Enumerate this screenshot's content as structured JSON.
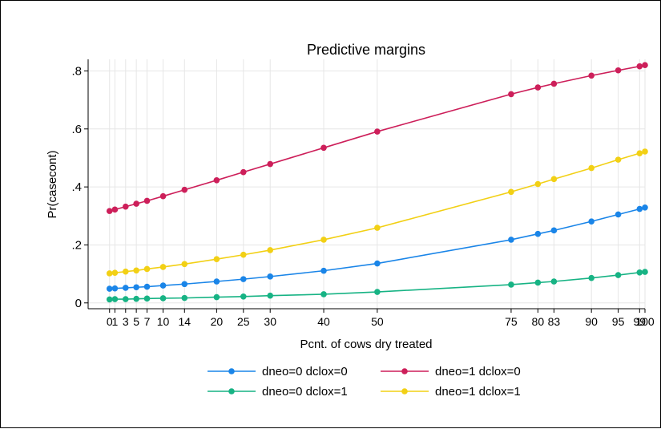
{
  "chart_data": {
    "type": "line",
    "title": "Predictive margins",
    "xlabel": "Pcnt. of cows dry treated",
    "ylabel": "Pr(casecont)",
    "x": [
      0,
      1,
      3,
      5,
      7,
      10,
      14,
      20,
      25,
      30,
      40,
      50,
      75,
      80,
      83,
      90,
      95,
      99,
      100
    ],
    "x_ticks": [
      {
        "value": 0,
        "label": "0"
      },
      {
        "value": 1,
        "label": "1"
      },
      {
        "value": 3,
        "label": "3"
      },
      {
        "value": 5,
        "label": "5"
      },
      {
        "value": 7,
        "label": "7"
      },
      {
        "value": 10,
        "label": "10"
      },
      {
        "value": 14,
        "label": "14"
      },
      {
        "value": 20,
        "label": "20"
      },
      {
        "value": 25,
        "label": "25"
      },
      {
        "value": 30,
        "label": "30"
      },
      {
        "value": 40,
        "label": "40"
      },
      {
        "value": 50,
        "label": "50"
      },
      {
        "value": 75,
        "label": "75"
      },
      {
        "value": 80,
        "label": "80"
      },
      {
        "value": 83,
        "label": "83"
      },
      {
        "value": 90,
        "label": "90"
      },
      {
        "value": 95,
        "label": "95"
      },
      {
        "value": 99,
        "label": "99"
      },
      {
        "value": 100,
        "label": "100"
      }
    ],
    "y_ticks": [
      {
        "value": 0,
        "label": "0"
      },
      {
        "value": 0.2,
        "label": ".2"
      },
      {
        "value": 0.4,
        "label": ".4"
      },
      {
        "value": 0.6,
        "label": ".6"
      },
      {
        "value": 0.8,
        "label": ".8"
      }
    ],
    "xlim": [
      -4,
      100
    ],
    "ylim": [
      -0.02,
      0.84
    ],
    "grid": true,
    "legend_position": "bottom",
    "series": [
      {
        "name": "dneo=0 dclox=0",
        "color": "#1a85e8",
        "values": [
          0.049,
          0.05,
          0.052,
          0.054,
          0.056,
          0.06,
          0.065,
          0.074,
          0.082,
          0.091,
          0.111,
          0.136,
          0.218,
          0.238,
          0.25,
          0.281,
          0.305,
          0.324,
          0.329
        ]
      },
      {
        "name": "dneo=1 dclox=0",
        "color": "#cd1f5a",
        "values": [
          0.317,
          0.322,
          0.332,
          0.342,
          0.352,
          0.368,
          0.39,
          0.423,
          0.451,
          0.479,
          0.535,
          0.591,
          0.72,
          0.743,
          0.756,
          0.784,
          0.802,
          0.816,
          0.82
        ]
      },
      {
        "name": "dneo=0 dclox=1",
        "color": "#17b384",
        "values": [
          0.012,
          0.013,
          0.013,
          0.014,
          0.015,
          0.016,
          0.017,
          0.02,
          0.022,
          0.025,
          0.03,
          0.038,
          0.063,
          0.07,
          0.074,
          0.086,
          0.096,
          0.105,
          0.107
        ]
      },
      {
        "name": "dneo=1 dclox=1",
        "color": "#f2d015",
        "values": [
          0.102,
          0.104,
          0.108,
          0.112,
          0.117,
          0.124,
          0.134,
          0.151,
          0.166,
          0.182,
          0.218,
          0.259,
          0.383,
          0.41,
          0.427,
          0.465,
          0.494,
          0.516,
          0.522
        ]
      }
    ],
    "legend_order": [
      0,
      1,
      2,
      3
    ]
  }
}
